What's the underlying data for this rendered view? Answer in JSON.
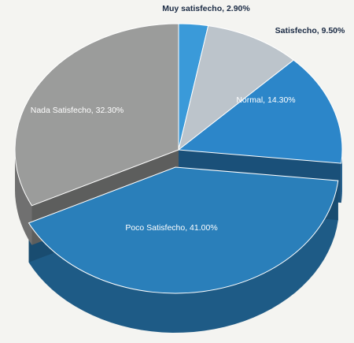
{
  "chart_data": {
    "type": "pie",
    "style": "3d-exploded",
    "slices": [
      {
        "label": "Muy satisfecho, 2.90%",
        "name": "Muy satisfecho",
        "value": 2.9,
        "color": "#3a9ad9"
      },
      {
        "label": "Satisfecho, 9.50%",
        "name": "Satisfecho",
        "value": 9.5,
        "color": "#bcc4cb"
      },
      {
        "label": "Normal, 14.30%",
        "name": "Normal",
        "value": 14.3,
        "color": "#2c86c9"
      },
      {
        "label": "Poco Satisfecho, 41.00%",
        "name": "Poco Satisfecho",
        "value": 41.0,
        "color": "#2a7fba",
        "exploded": true
      },
      {
        "label": "Nada Satisfecho, 32.30%",
        "name": "Nada Satisfecho",
        "value": 32.3,
        "color": "#9b9c9b"
      }
    ],
    "label_colors": {
      "Muy satisfecho": "#1a2a44",
      "Satisfecho": "#1a2a44",
      "Normal": "#ffffff",
      "Poco Satisfecho": "#ffffff",
      "Nada Satisfecho": "#ffffff"
    }
  }
}
